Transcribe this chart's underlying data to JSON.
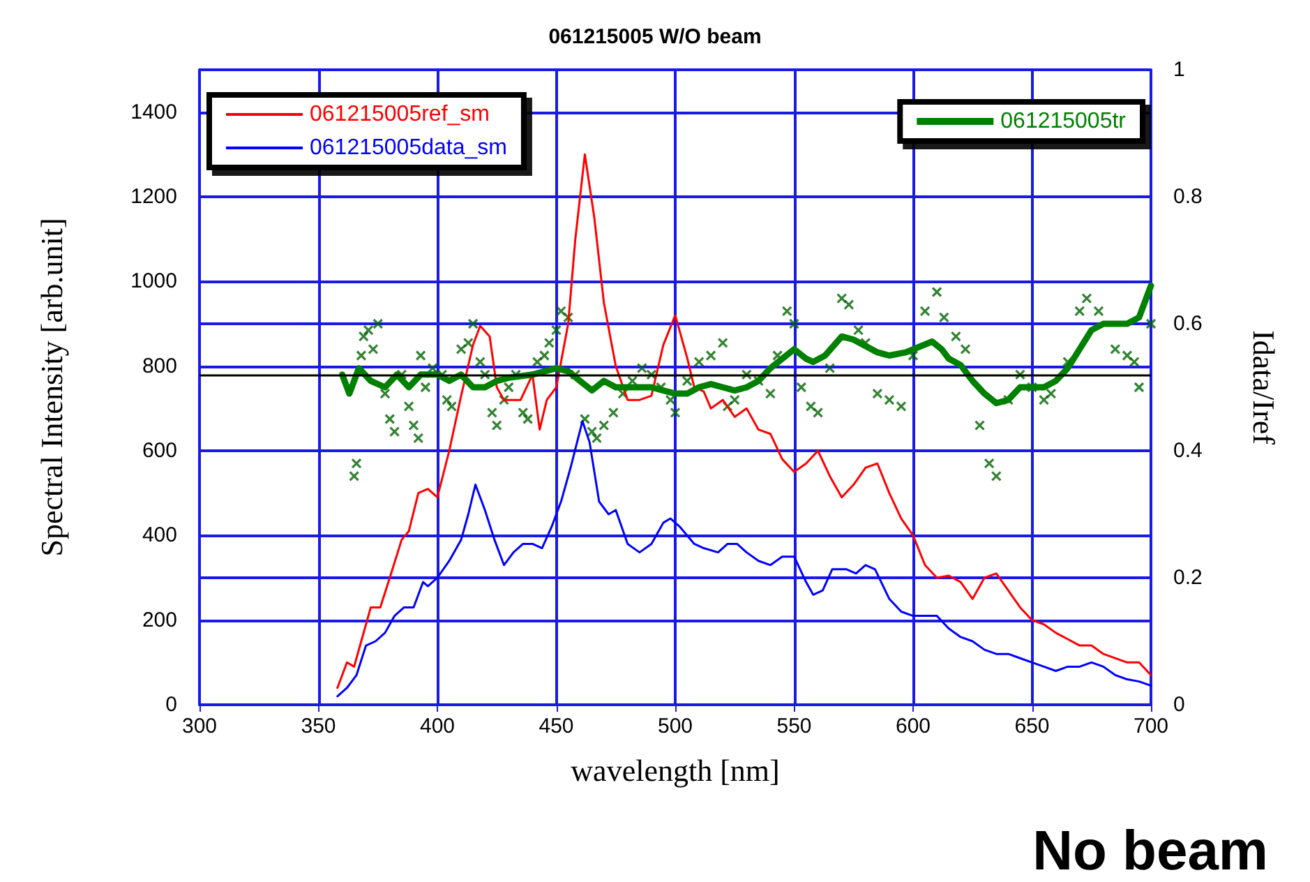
{
  "chart_data": {
    "type": "line",
    "title": "061215005 W/O beam",
    "xlabel": "wavelength [nm]",
    "ylabel": "Spectral Intensity [arb.unit]",
    "y2label": "Idata/Iref",
    "xlim": [
      300,
      700
    ],
    "xticks": [
      300,
      350,
      400,
      450,
      500,
      550,
      600,
      650,
      700
    ],
    "ylim": [
      0,
      1500
    ],
    "yticks": [
      0,
      200,
      400,
      600,
      800,
      1000,
      1200,
      1400
    ],
    "y2lim": [
      0,
      1
    ],
    "y2ticks": [
      0,
      0.2,
      0.4,
      0.6,
      0.8,
      1
    ],
    "grid": true,
    "legend": "top",
    "marker": "none",
    "line_style": "solid",
    "ref_lines": [
      {
        "axis": "y2",
        "value": 0.515,
        "label": null,
        "color": "#000000"
      }
    ],
    "annotations": [
      "No beam"
    ],
    "series": [
      {
        "name": "061215005ref_sm",
        "color": "#ff0000",
        "x": [
          358,
          362,
          365,
          368,
          372,
          376,
          380,
          385,
          388,
          392,
          396,
          400,
          405,
          410,
          415,
          418,
          422,
          425,
          428,
          435,
          440,
          443,
          446,
          450,
          455,
          458,
          462,
          466,
          470,
          475,
          480,
          485,
          490,
          495,
          500,
          505,
          508,
          512,
          515,
          520,
          525,
          530,
          535,
          540,
          545,
          550,
          555,
          560,
          565,
          570,
          575,
          580,
          585,
          590,
          595,
          600,
          605,
          610,
          615,
          620,
          625,
          630,
          635,
          640,
          645,
          650,
          655,
          660,
          670,
          675,
          680,
          690,
          695,
          700
        ],
        "values": [
          40,
          100,
          90,
          150,
          230,
          230,
          300,
          390,
          410,
          500,
          510,
          490,
          600,
          730,
          850,
          895,
          870,
          750,
          720,
          720,
          780,
          650,
          720,
          750,
          900,
          1100,
          1300,
          1150,
          950,
          800,
          720,
          720,
          730,
          850,
          920,
          820,
          750,
          740,
          700,
          720,
          680,
          700,
          650,
          640,
          580,
          550,
          570,
          600,
          540,
          490,
          520,
          560,
          570,
          500,
          440,
          400,
          330,
          300,
          305,
          290,
          250,
          300,
          310,
          270,
          230,
          200,
          190,
          170,
          140,
          140,
          120,
          100,
          100,
          70
        ]
      },
      {
        "name": "061215005data_sm",
        "color": "#0000ff",
        "x": [
          358,
          362,
          366,
          370,
          374,
          378,
          382,
          386,
          390,
          394,
          396,
          400,
          405,
          410,
          413,
          416,
          420,
          424,
          428,
          432,
          436,
          440,
          444,
          448,
          452,
          456,
          461,
          464,
          468,
          472,
          475,
          480,
          485,
          490,
          495,
          498,
          502,
          508,
          512,
          518,
          522,
          526,
          530,
          535,
          540,
          545,
          550,
          555,
          558,
          562,
          566,
          572,
          576,
          580,
          584,
          590,
          595,
          600,
          605,
          610,
          615,
          620,
          625,
          630,
          635,
          640,
          645,
          650,
          655,
          660,
          665,
          670,
          675,
          680,
          685,
          690,
          695,
          700
        ],
        "values": [
          20,
          40,
          70,
          140,
          150,
          170,
          210,
          230,
          230,
          290,
          280,
          300,
          340,
          390,
          450,
          520,
          460,
          390,
          330,
          360,
          380,
          380,
          370,
          420,
          480,
          560,
          670,
          620,
          480,
          450,
          460,
          380,
          360,
          380,
          430,
          440,
          420,
          380,
          370,
          360,
          380,
          380,
          360,
          340,
          330,
          350,
          350,
          290,
          260,
          270,
          320,
          320,
          310,
          330,
          320,
          250,
          220,
          210,
          210,
          210,
          180,
          160,
          150,
          130,
          120,
          120,
          110,
          100,
          90,
          80,
          90,
          90,
          100,
          90,
          70,
          60,
          55,
          45
        ]
      },
      {
        "name": "061215005tr",
        "color": "#008000",
        "axis": "y2",
        "x": [
          360,
          363,
          367,
          372,
          378,
          383,
          388,
          393,
          400,
          405,
          410,
          415,
          420,
          425,
          430,
          440,
          450,
          455,
          460,
          465,
          470,
          475,
          480,
          490,
          495,
          500,
          505,
          510,
          515,
          520,
          525,
          530,
          535,
          540,
          550,
          555,
          558,
          563,
          570,
          575,
          585,
          590,
          597,
          608,
          612,
          615,
          620,
          625,
          630,
          635,
          640,
          645,
          650,
          655,
          660,
          665,
          670,
          675,
          680,
          690,
          695,
          700
        ],
        "values": [
          0.52,
          0.49,
          0.53,
          0.51,
          0.5,
          0.52,
          0.5,
          0.52,
          0.52,
          0.51,
          0.52,
          0.5,
          0.5,
          0.51,
          0.515,
          0.52,
          0.53,
          0.525,
          0.51,
          0.495,
          0.51,
          0.5,
          0.5,
          0.5,
          0.495,
          0.49,
          0.49,
          0.5,
          0.505,
          0.5,
          0.495,
          0.5,
          0.51,
          0.53,
          0.56,
          0.545,
          0.54,
          0.55,
          0.58,
          0.575,
          0.555,
          0.55,
          0.555,
          0.572,
          0.56,
          0.545,
          0.535,
          0.51,
          0.49,
          0.475,
          0.48,
          0.5,
          0.5,
          0.5,
          0.51,
          0.53,
          0.56,
          0.59,
          0.6,
          0.6,
          0.61,
          0.66
        ]
      },
      {
        "type": "scatter",
        "color": "#006400",
        "axis": "y2",
        "marker": "cross",
        "x": [
          365,
          366,
          368,
          369,
          371,
          373,
          375,
          378,
          380,
          382,
          385,
          388,
          390,
          392,
          393,
          395,
          398,
          402,
          404,
          406,
          410,
          413,
          415,
          418,
          420,
          423,
          425,
          428,
          430,
          433,
          436,
          438,
          442,
          445,
          447,
          450,
          452,
          455,
          458,
          462,
          465,
          467,
          470,
          474,
          478,
          482,
          486,
          490,
          494,
          498,
          500,
          505,
          510,
          515,
          520,
          522,
          525,
          530,
          535,
          540,
          543,
          547,
          550,
          553,
          557,
          560,
          565,
          570,
          573,
          577,
          580,
          585,
          590,
          595,
          600,
          605,
          610,
          613,
          618,
          622,
          628,
          632,
          635,
          640,
          645,
          650,
          655,
          658,
          665,
          670,
          673,
          678,
          685,
          690,
          693,
          695,
          700
        ],
        "values": [
          0.36,
          0.38,
          0.55,
          0.58,
          0.59,
          0.56,
          0.6,
          0.49,
          0.45,
          0.43,
          0.52,
          0.47,
          0.44,
          0.42,
          0.55,
          0.5,
          0.53,
          0.52,
          0.48,
          0.47,
          0.56,
          0.57,
          0.6,
          0.54,
          0.52,
          0.46,
          0.44,
          0.48,
          0.5,
          0.52,
          0.46,
          0.45,
          0.54,
          0.55,
          0.57,
          0.59,
          0.62,
          0.61,
          0.52,
          0.45,
          0.43,
          0.42,
          0.44,
          0.46,
          0.49,
          0.51,
          0.53,
          0.52,
          0.5,
          0.48,
          0.46,
          0.51,
          0.54,
          0.55,
          0.57,
          0.47,
          0.48,
          0.52,
          0.51,
          0.49,
          0.55,
          0.62,
          0.6,
          0.5,
          0.47,
          0.46,
          0.53,
          0.64,
          0.63,
          0.59,
          0.57,
          0.49,
          0.48,
          0.47,
          0.55,
          0.62,
          0.65,
          0.61,
          0.58,
          0.56,
          0.44,
          0.38,
          0.36,
          0.48,
          0.52,
          0.5,
          0.48,
          0.49,
          0.54,
          0.62,
          0.64,
          0.62,
          0.56,
          0.55,
          0.54,
          0.5,
          0.6
        ]
      }
    ]
  }
}
